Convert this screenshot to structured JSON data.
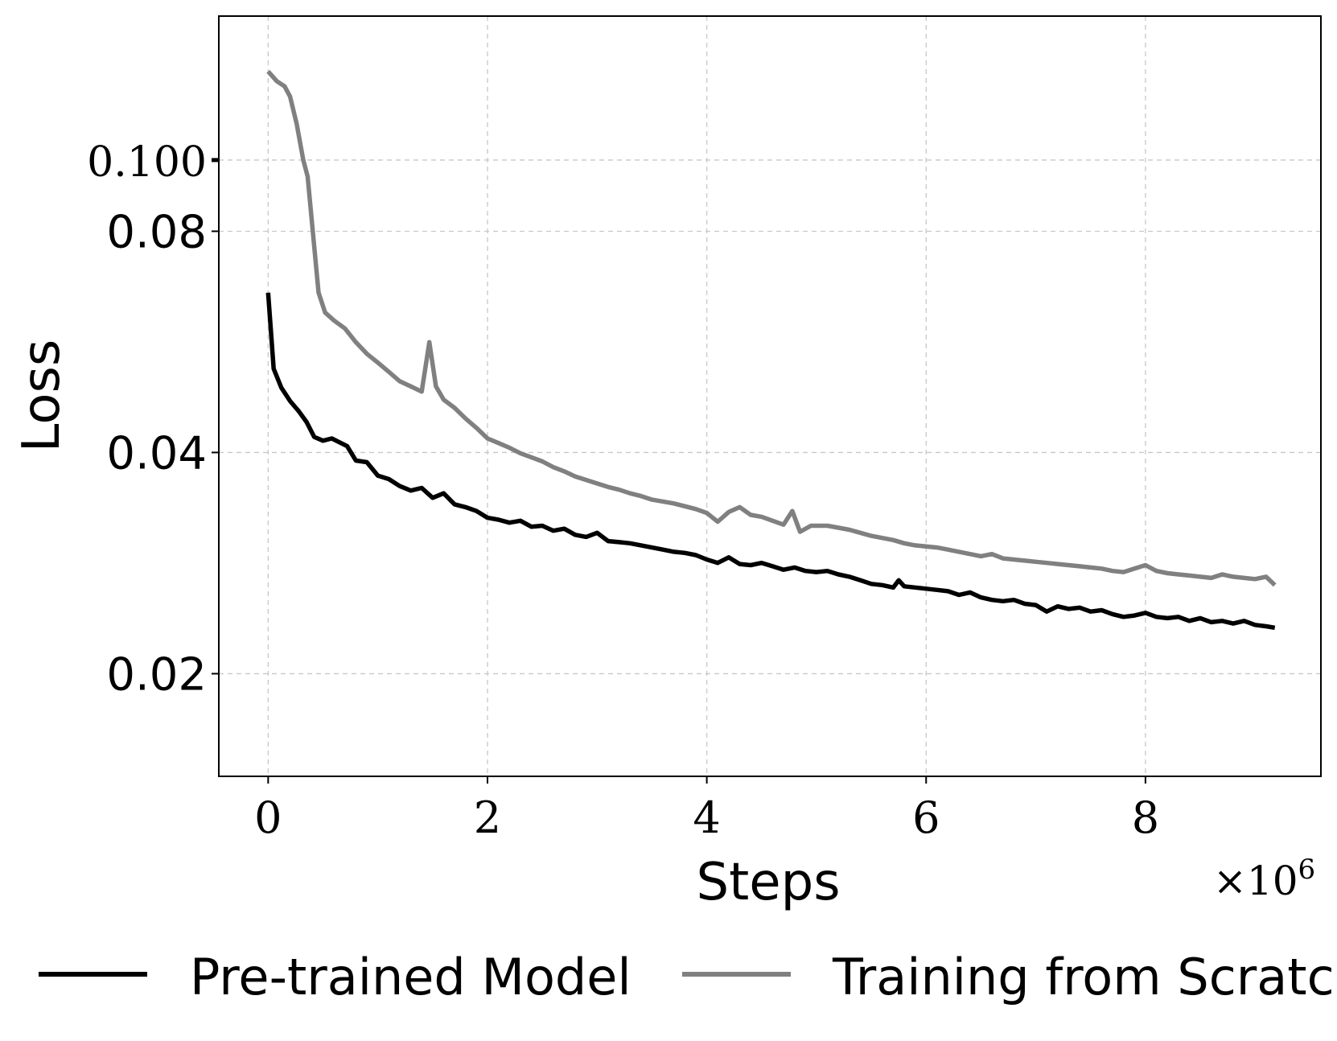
{
  "chart_data": {
    "type": "line",
    "title": "",
    "xlabel": "Steps",
    "ylabel": "Loss",
    "x_offset_label": "×10",
    "x_offset_exponent": "6",
    "x_scale": 1000000,
    "yscale": "log",
    "grid": true,
    "xlim": [
      -0.45,
      9.6
    ],
    "ylim": [
      0.0145,
      0.157
    ],
    "xticks": [
      {
        "value": 0,
        "label": "0"
      },
      {
        "value": 2,
        "label": "2"
      },
      {
        "value": 4,
        "label": "4"
      },
      {
        "value": 6,
        "label": "6"
      },
      {
        "value": 8,
        "label": "8"
      }
    ],
    "yticks": [
      {
        "value": 0.1,
        "label": "0.100",
        "style": "serif"
      },
      {
        "value": 0.08,
        "label": "0.08",
        "style": "sans"
      },
      {
        "value": 0.04,
        "label": "0.04",
        "style": "sans"
      },
      {
        "value": 0.02,
        "label": "0.02",
        "style": "sans"
      }
    ],
    "legend": {
      "position": "bottom"
    },
    "series": [
      {
        "name": "Pre-trained Model",
        "color": "#000000",
        "points": [
          [
            0,
            0.066
          ],
          [
            0.05,
            0.052
          ],
          [
            0.12,
            0.049
          ],
          [
            0.2,
            0.047
          ],
          [
            0.28,
            0.0455
          ],
          [
            0.35,
            0.044
          ],
          [
            0.42,
            0.042
          ],
          [
            0.5,
            0.0415
          ],
          [
            0.58,
            0.0418
          ],
          [
            0.65,
            0.0413
          ],
          [
            0.72,
            0.0408
          ],
          [
            0.8,
            0.039
          ],
          [
            0.9,
            0.0388
          ],
          [
            1.0,
            0.0372
          ],
          [
            1.1,
            0.0368
          ],
          [
            1.2,
            0.036
          ],
          [
            1.3,
            0.0355
          ],
          [
            1.4,
            0.0358
          ],
          [
            1.5,
            0.0347
          ],
          [
            1.6,
            0.0352
          ],
          [
            1.7,
            0.034
          ],
          [
            1.8,
            0.0337
          ],
          [
            1.9,
            0.0333
          ],
          [
            2.0,
            0.0326
          ],
          [
            2.1,
            0.0324
          ],
          [
            2.2,
            0.0321
          ],
          [
            2.3,
            0.0323
          ],
          [
            2.4,
            0.0317
          ],
          [
            2.5,
            0.0318
          ],
          [
            2.6,
            0.0313
          ],
          [
            2.7,
            0.0315
          ],
          [
            2.8,
            0.0309
          ],
          [
            2.9,
            0.0307
          ],
          [
            3.0,
            0.0311
          ],
          [
            3.1,
            0.0303
          ],
          [
            3.2,
            0.0302
          ],
          [
            3.3,
            0.0301
          ],
          [
            3.4,
            0.0299
          ],
          [
            3.5,
            0.0297
          ],
          [
            3.6,
            0.0295
          ],
          [
            3.7,
            0.0293
          ],
          [
            3.8,
            0.0292
          ],
          [
            3.9,
            0.029
          ],
          [
            4.0,
            0.0286
          ],
          [
            4.1,
            0.0283
          ],
          [
            4.2,
            0.0288
          ],
          [
            4.3,
            0.0282
          ],
          [
            4.4,
            0.0281
          ],
          [
            4.5,
            0.0283
          ],
          [
            4.6,
            0.028
          ],
          [
            4.7,
            0.0277
          ],
          [
            4.8,
            0.0279
          ],
          [
            4.9,
            0.0276
          ],
          [
            5.0,
            0.0275
          ],
          [
            5.1,
            0.0276
          ],
          [
            5.2,
            0.0273
          ],
          [
            5.3,
            0.0271
          ],
          [
            5.4,
            0.0268
          ],
          [
            5.5,
            0.0265
          ],
          [
            5.6,
            0.0264
          ],
          [
            5.7,
            0.0262
          ],
          [
            5.75,
            0.0268
          ],
          [
            5.8,
            0.0263
          ],
          [
            5.9,
            0.0262
          ],
          [
            6.0,
            0.0261
          ],
          [
            6.1,
            0.026
          ],
          [
            6.2,
            0.0259
          ],
          [
            6.3,
            0.0256
          ],
          [
            6.4,
            0.0258
          ],
          [
            6.5,
            0.0254
          ],
          [
            6.6,
            0.0252
          ],
          [
            6.7,
            0.0251
          ],
          [
            6.8,
            0.0252
          ],
          [
            6.9,
            0.0249
          ],
          [
            7.0,
            0.0248
          ],
          [
            7.1,
            0.0243
          ],
          [
            7.2,
            0.0247
          ],
          [
            7.3,
            0.0245
          ],
          [
            7.4,
            0.0246
          ],
          [
            7.5,
            0.0243
          ],
          [
            7.6,
            0.0244
          ],
          [
            7.7,
            0.0241
          ],
          [
            7.8,
            0.0239
          ],
          [
            7.9,
            0.024
          ],
          [
            8.0,
            0.0242
          ],
          [
            8.1,
            0.0239
          ],
          [
            8.2,
            0.0238
          ],
          [
            8.3,
            0.0239
          ],
          [
            8.4,
            0.0236
          ],
          [
            8.5,
            0.0238
          ],
          [
            8.6,
            0.0235
          ],
          [
            8.7,
            0.0236
          ],
          [
            8.8,
            0.0234
          ],
          [
            8.9,
            0.0236
          ],
          [
            9.0,
            0.0233
          ],
          [
            9.1,
            0.0232
          ],
          [
            9.18,
            0.0231
          ]
        ]
      },
      {
        "name": "Training from Scratch",
        "color": "#808080",
        "points": [
          [
            0,
            0.132
          ],
          [
            0.08,
            0.128
          ],
          [
            0.15,
            0.126
          ],
          [
            0.2,
            0.122
          ],
          [
            0.26,
            0.112
          ],
          [
            0.32,
            0.1
          ],
          [
            0.36,
            0.095
          ],
          [
            0.4,
            0.082
          ],
          [
            0.46,
            0.066
          ],
          [
            0.52,
            0.062
          ],
          [
            0.6,
            0.0605
          ],
          [
            0.7,
            0.059
          ],
          [
            0.8,
            0.0565
          ],
          [
            0.9,
            0.0545
          ],
          [
            1.0,
            0.053
          ],
          [
            1.1,
            0.0515
          ],
          [
            1.2,
            0.05
          ],
          [
            1.3,
            0.0492
          ],
          [
            1.4,
            0.0484
          ],
          [
            1.47,
            0.0565
          ],
          [
            1.53,
            0.0492
          ],
          [
            1.6,
            0.0472
          ],
          [
            1.7,
            0.046
          ],
          [
            1.8,
            0.0445
          ],
          [
            1.9,
            0.0432
          ],
          [
            2.0,
            0.0418
          ],
          [
            2.1,
            0.0412
          ],
          [
            2.2,
            0.0406
          ],
          [
            2.3,
            0.0399
          ],
          [
            2.4,
            0.0394
          ],
          [
            2.5,
            0.0389
          ],
          [
            2.6,
            0.0382
          ],
          [
            2.7,
            0.0377
          ],
          [
            2.8,
            0.0371
          ],
          [
            2.9,
            0.0367
          ],
          [
            3.0,
            0.0363
          ],
          [
            3.1,
            0.0359
          ],
          [
            3.2,
            0.0356
          ],
          [
            3.3,
            0.0352
          ],
          [
            3.4,
            0.0349
          ],
          [
            3.5,
            0.0345
          ],
          [
            3.6,
            0.0343
          ],
          [
            3.7,
            0.0341
          ],
          [
            3.8,
            0.0338
          ],
          [
            3.9,
            0.0335
          ],
          [
            4.0,
            0.0331
          ],
          [
            4.1,
            0.0322
          ],
          [
            4.2,
            0.0332
          ],
          [
            4.3,
            0.0337
          ],
          [
            4.4,
            0.0329
          ],
          [
            4.5,
            0.0327
          ],
          [
            4.6,
            0.0323
          ],
          [
            4.7,
            0.0319
          ],
          [
            4.78,
            0.0333
          ],
          [
            4.85,
            0.0312
          ],
          [
            4.95,
            0.0318
          ],
          [
            5.1,
            0.0318
          ],
          [
            5.2,
            0.0316
          ],
          [
            5.3,
            0.0314
          ],
          [
            5.4,
            0.0311
          ],
          [
            5.5,
            0.0308
          ],
          [
            5.6,
            0.0306
          ],
          [
            5.7,
            0.0304
          ],
          [
            5.8,
            0.0301
          ],
          [
            5.9,
            0.0299
          ],
          [
            6.0,
            0.0298
          ],
          [
            6.1,
            0.0297
          ],
          [
            6.2,
            0.0295
          ],
          [
            6.3,
            0.0293
          ],
          [
            6.4,
            0.0291
          ],
          [
            6.5,
            0.0289
          ],
          [
            6.6,
            0.0291
          ],
          [
            6.7,
            0.0287
          ],
          [
            6.8,
            0.0286
          ],
          [
            6.9,
            0.0285
          ],
          [
            7.0,
            0.0284
          ],
          [
            7.1,
            0.0283
          ],
          [
            7.2,
            0.0282
          ],
          [
            7.3,
            0.0281
          ],
          [
            7.4,
            0.028
          ],
          [
            7.5,
            0.0279
          ],
          [
            7.6,
            0.0278
          ],
          [
            7.7,
            0.0276
          ],
          [
            7.8,
            0.0275
          ],
          [
            7.9,
            0.0278
          ],
          [
            8.0,
            0.0281
          ],
          [
            8.1,
            0.0276
          ],
          [
            8.2,
            0.0274
          ],
          [
            8.3,
            0.0273
          ],
          [
            8.4,
            0.0272
          ],
          [
            8.5,
            0.0271
          ],
          [
            8.6,
            0.027
          ],
          [
            8.7,
            0.0273
          ],
          [
            8.8,
            0.0271
          ],
          [
            8.9,
            0.027
          ],
          [
            9.0,
            0.0269
          ],
          [
            9.1,
            0.0271
          ],
          [
            9.18,
            0.0264
          ]
        ]
      }
    ]
  }
}
